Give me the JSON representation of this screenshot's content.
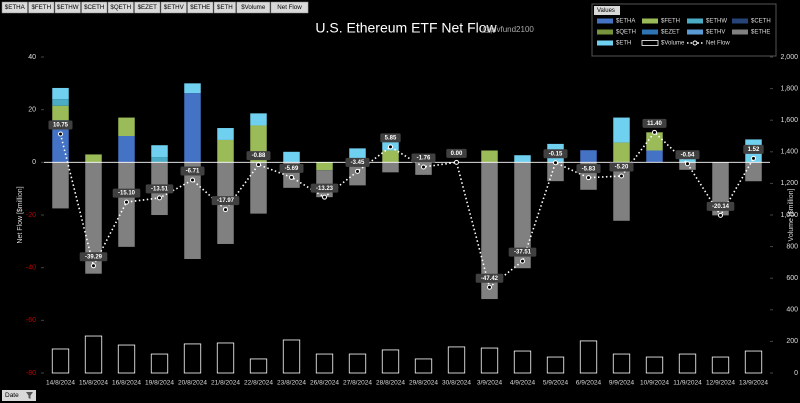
{
  "filter_buttons": [
    "$ETHA",
    "$FETH",
    "$ETHW",
    "$CETH",
    "$QETH",
    "$EZET",
    "$ETHV",
    "$ETHE",
    "$ETH",
    "$Volume",
    "Net Flow"
  ],
  "date_button": "Date",
  "legend_title": "Values",
  "chart_data": {
    "type": "bar",
    "title": "U.S. Ethereum ETF Net Flow",
    "subtitle": "@pivfund2100",
    "y_label": "Net Flow [$million]",
    "y2_label": "Volume [$million]",
    "ylim": [
      -80,
      40
    ],
    "yticks": [
      -80,
      -60,
      -40,
      -20,
      0,
      20,
      40
    ],
    "y2lim": [
      0,
      2000
    ],
    "y2ticks": [
      0,
      200,
      400,
      600,
      800,
      {
        "value": 1000,
        "label": "1,000"
      },
      {
        "value": 1200,
        "label": "1,200"
      },
      {
        "value": 1400,
        "label": "1,400"
      },
      {
        "value": 1600,
        "label": "1,600"
      },
      {
        "value": 1800,
        "label": "1,800"
      },
      {
        "value": 2000,
        "label": "2,000"
      }
    ],
    "negative_tick_color": "#c00000",
    "categories": [
      "14/8/2024",
      "15/8/2024",
      "16/8/2024",
      "19/8/2024",
      "20/8/2024",
      "21/8/2024",
      "22/8/2024",
      "23/8/2024",
      "26/8/2024",
      "27/8/2024",
      "28/8/2024",
      "29/8/2024",
      "30/8/2024",
      "3/9/2024",
      "4/9/2024",
      "5/9/2024",
      "6/9/2024",
      "9/9/2024",
      "10/9/2024",
      "11/9/2024",
      "12/9/2024",
      "13/9/2024"
    ],
    "series": [
      {
        "name": "$ETHA",
        "kind": "stack",
        "color": "#4472c4",
        "values": [
          16.0,
          0,
          10.0,
          0,
          26.3,
          0,
          0,
          0,
          0,
          0,
          0,
          0,
          0,
          0,
          0,
          0,
          4.6,
          0,
          4.5,
          0,
          0,
          0
        ]
      },
      {
        "name": "$FETH",
        "kind": "stack",
        "color": "#9bbb59",
        "values": [
          5.5,
          3.0,
          7.0,
          0,
          0,
          8.5,
          14.0,
          0,
          -3.0,
          1.5,
          4.5,
          0,
          0,
          4.5,
          0,
          0,
          0,
          7.5,
          6.9,
          0,
          0,
          0
        ]
      },
      {
        "name": "$ETHW",
        "kind": "stack",
        "color": "#4bacc6",
        "values": [
          2.5,
          0,
          0,
          2.0,
          0,
          0,
          0,
          0,
          0,
          0,
          0,
          0,
          0,
          0,
          0,
          0,
          0,
          0,
          0,
          0,
          0,
          0
        ]
      },
      {
        "name": "$CETH",
        "kind": "stack",
        "color": "#264478",
        "values": [
          0,
          0,
          0,
          0,
          0,
          0,
          0,
          0,
          0,
          0,
          0,
          0,
          0,
          0,
          0,
          0,
          0,
          0,
          0,
          0,
          0,
          0
        ]
      },
      {
        "name": "$QETH",
        "kind": "stack",
        "color": "#77933c",
        "values": [
          0,
          0,
          0,
          0,
          0,
          0,
          0,
          0,
          0,
          0,
          0,
          0,
          0,
          0,
          0,
          0,
          0,
          0,
          0,
          0,
          0,
          0
        ]
      },
      {
        "name": "$EZET",
        "kind": "stack",
        "color": "#2e75b6",
        "values": [
          0,
          0,
          0,
          0,
          0,
          0,
          0,
          0,
          0,
          0,
          0,
          0,
          0,
          0,
          0,
          0,
          0,
          0,
          0,
          0,
          0,
          0
        ]
      },
      {
        "name": "$ETHV",
        "kind": "stack",
        "color": "#5b9bd5",
        "values": [
          0,
          0,
          0,
          0,
          0,
          0,
          0,
          0,
          0,
          0,
          0,
          0,
          0,
          0,
          0,
          0,
          0,
          0,
          0,
          0,
          0,
          0
        ]
      },
      {
        "name": "$ETHE",
        "kind": "stack",
        "color": "#808080",
        "values": [
          -17.5,
          -42.29,
          -32.1,
          -20.01,
          -36.71,
          -31.0,
          -19.48,
          -9.69,
          -10.23,
          -8.75,
          -3.8,
          -4.76,
          0,
          -51.92,
          -40.21,
          -7.15,
          -10.43,
          -22.2,
          0,
          -2.84,
          -20.14,
          -7.18
        ]
      },
      {
        "name": "$ETH",
        "kind": "stack",
        "color": "#6fd0ef",
        "values": [
          4.25,
          0,
          0,
          4.5,
          3.7,
          4.53,
          4.6,
          4.0,
          0,
          3.8,
          5.15,
          3.0,
          0,
          0,
          2.7,
          7.0,
          0,
          9.5,
          0,
          2.3,
          0,
          8.7
        ]
      },
      {
        "name": "$Volume",
        "kind": "volume",
        "axis": "y2",
        "color": "#ffffff",
        "values": [
          152,
          234,
          177,
          120,
          184,
          190,
          89,
          209,
          120,
          120,
          146,
          89,
          165,
          158,
          139,
          101,
          203,
          120,
          101,
          120,
          101,
          139
        ]
      },
      {
        "name": "Net Flow",
        "kind": "line",
        "color": "#ffffff",
        "values": [
          10.75,
          -39.29,
          -15.1,
          -13.51,
          -6.71,
          -17.97,
          -0.88,
          -5.69,
          -13.23,
          -3.45,
          5.85,
          -1.76,
          0,
          -47.42,
          -37.51,
          -0.15,
          -5.83,
          -5.2,
          11.4,
          -0.54,
          -20.14,
          1.52
        ],
        "value_labels": [
          "10.75",
          "-39.29",
          "-15.10",
          "-13.51",
          "-6.71",
          "-17.97",
          "-0.88",
          "-5.69",
          "-13.23",
          "-3.45",
          "5.85",
          "-1.76",
          "0.00",
          "-47.42",
          "-37.51",
          "-0.15",
          "-5.83",
          "-5.20",
          "11.40",
          "-0.54",
          "-20.14",
          "1.52"
        ]
      }
    ]
  }
}
